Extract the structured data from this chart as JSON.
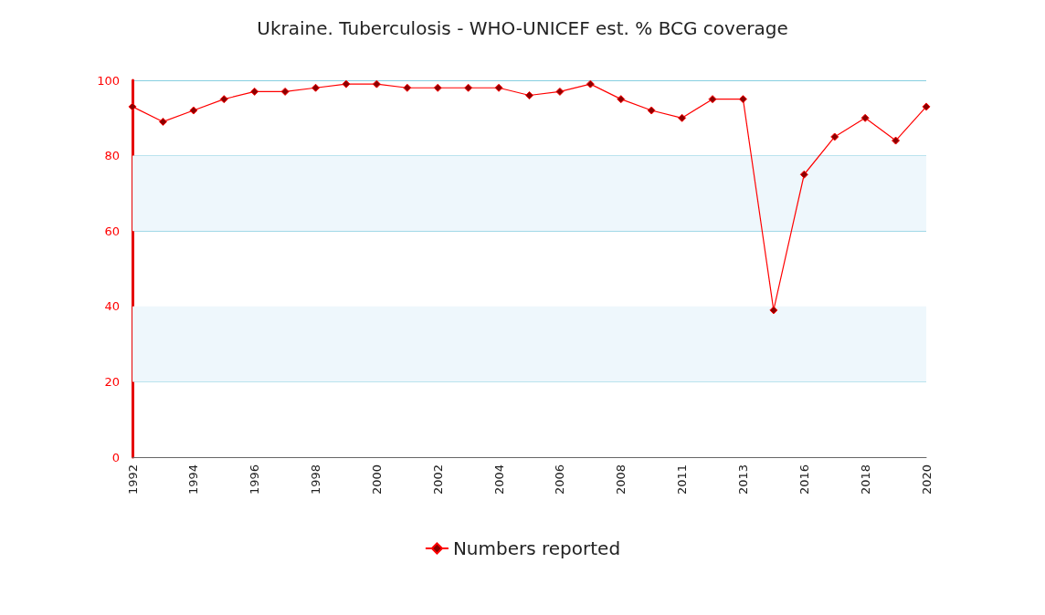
{
  "chart_data": {
    "type": "line",
    "title": "Ukraine. Tuberculosis - WHO-UNICEF est. % BCG coverage",
    "categories": [
      "1992",
      null,
      "1994",
      null,
      "1996",
      null,
      "1998",
      null,
      "2000",
      null,
      "2002",
      null,
      "2004",
      null,
      "2006",
      null,
      "2008",
      null,
      "2011",
      null,
      "2013",
      null,
      "2016",
      null,
      "2018",
      null,
      "2020"
    ],
    "series": [
      {
        "name": "Numbers reported",
        "color": "#ff0000",
        "values": [
          93,
          89,
          92,
          95,
          97,
          97,
          98,
          99,
          99,
          98,
          98,
          98,
          98,
          96,
          97,
          99,
          95,
          92,
          90,
          95,
          95,
          39,
          75,
          85,
          90,
          84,
          93
        ]
      }
    ],
    "ylim": [
      0,
      100
    ],
    "yticks": [
      0,
      20,
      40,
      60,
      80,
      100
    ],
    "grid": "y",
    "bands": [
      {
        "axis": "y",
        "from": 20,
        "to": 40,
        "color": "#eef7fc"
      },
      {
        "axis": "y",
        "from": 60,
        "to": 80,
        "color": "#eef7fc"
      }
    ],
    "legend": "bottom",
    "marker": "diamond",
    "line_style": "solid"
  }
}
